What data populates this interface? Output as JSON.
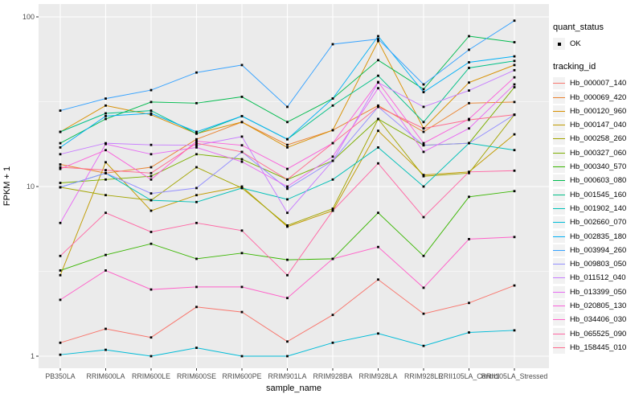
{
  "chart_data": {
    "type": "line",
    "title": "",
    "xlabel": "sample_name",
    "ylabel": "FPKM + 1",
    "y_scale": "log10",
    "ylim": [
      0.95,
      110
    ],
    "grid": "on",
    "legend_position": "right",
    "panel_bg": "#EBEBEB",
    "gridline_color": "#FFFFFF",
    "point_color": "#000000",
    "axis_text_color": "#4D4D4D",
    "y_ticks": [
      1,
      10,
      100
    ],
    "y_tick_labels": [
      "1",
      "10",
      "100"
    ],
    "y_minor_ticks": [
      3.1623,
      31.623
    ],
    "categories": [
      "PB350LA",
      "RRIM600LA",
      "RRIM600LE",
      "RRIM600SE",
      "RRIM600PE",
      "RRIM901LA",
      "RRIM928BA",
      "RRIM928LA",
      "RRIM928LE",
      "RRII105LA_Control",
      "RRII105LA_Stressed"
    ],
    "series": [
      {
        "name": "Hb_000007_140",
        "color": "#F8766D",
        "values": [
          1.2,
          1.45,
          1.29,
          1.95,
          1.82,
          1.22,
          1.75,
          2.83,
          1.78,
          2.06,
          2.61
        ]
      },
      {
        "name": "Hb_000069_420",
        "color": "#EA8331",
        "values": [
          13.5,
          12.0,
          13.0,
          19.0,
          24.0,
          17.6,
          21.5,
          30.0,
          21.0,
          31.0,
          31.5
        ]
      },
      {
        "name": "Hb_000120_960",
        "color": "#D89000",
        "values": [
          21.0,
          30.0,
          26.5,
          20.5,
          24.0,
          17.0,
          21.5,
          72.0,
          22.0,
          41.0,
          52.0
        ]
      },
      {
        "name": "Hb_000147_040",
        "color": "#C09B00",
        "values": [
          3.0,
          13.9,
          7.2,
          8.9,
          10.0,
          5.8,
          7.2,
          21.3,
          11.7,
          12.2,
          20.3
        ]
      },
      {
        "name": "Hb_000258_260",
        "color": "#A3A500",
        "values": [
          9.9,
          8.9,
          8.3,
          13.0,
          9.8,
          5.9,
          7.4,
          25.0,
          11.5,
          12.0,
          26.5
        ]
      },
      {
        "name": "Hb_000327_060",
        "color": "#7CAE00",
        "values": [
          10.5,
          11.0,
          11.5,
          15.5,
          14.5,
          11.0,
          14.2,
          25.0,
          17.5,
          18.0,
          38.5
        ]
      },
      {
        "name": "Hb_000340_570",
        "color": "#39B600",
        "values": [
          3.2,
          3.95,
          4.6,
          3.75,
          4.05,
          3.7,
          3.75,
          7.0,
          3.9,
          8.7,
          9.4
        ]
      },
      {
        "name": "Hb_000603_080",
        "color": "#00BB4E",
        "values": [
          18.0,
          25.0,
          31.5,
          31.0,
          33.8,
          24.0,
          33.0,
          55.6,
          37.5,
          77.0,
          70.9
        ]
      },
      {
        "name": "Hb_001545_160",
        "color": "#00C087",
        "values": [
          21.0,
          27.0,
          28.0,
          20.5,
          26.0,
          19.0,
          30.0,
          45.0,
          24.0,
          50.0,
          55.0
        ]
      },
      {
        "name": "Hb_001902_140",
        "color": "#00C0B8",
        "values": [
          9.9,
          12.0,
          8.3,
          8.1,
          9.8,
          8.4,
          11.0,
          17.0,
          10.0,
          18.0,
          16.4
        ]
      },
      {
        "name": "Hb_002660_070",
        "color": "#00BCD8",
        "values": [
          1.02,
          1.09,
          1.0,
          1.12,
          1.0,
          1.0,
          1.2,
          1.36,
          1.15,
          1.38,
          1.42
        ]
      },
      {
        "name": "Hb_002835_180",
        "color": "#00B0F6",
        "values": [
          17.0,
          26.0,
          27.0,
          21.0,
          26.0,
          19.0,
          33.0,
          77.0,
          36.0,
          54.0,
          58.5
        ]
      },
      {
        "name": "Hb_003994_260",
        "color": "#35A2FF",
        "values": [
          28.0,
          33.0,
          37.0,
          47.0,
          52.0,
          29.5,
          69.0,
          74.0,
          40.0,
          64.0,
          95.0
        ]
      },
      {
        "name": "Hb_009803_050",
        "color": "#9590FF",
        "values": [
          9.9,
          12.0,
          9.1,
          9.8,
          16.0,
          9.7,
          14.2,
          29.5,
          17.5,
          18.0,
          26.5
        ]
      },
      {
        "name": "Hb_011512_040",
        "color": "#C77CFF",
        "values": [
          15.5,
          18.0,
          17.6,
          17.5,
          19.7,
          7.0,
          14.2,
          41.0,
          29.5,
          36.8,
          48.5
        ]
      },
      {
        "name": "Hb_013399_050",
        "color": "#E76BF3",
        "values": [
          6.1,
          17.8,
          15.5,
          17.0,
          14.0,
          10.0,
          15.0,
          38.0,
          16.0,
          22.0,
          40.0
        ]
      },
      {
        "name": "Hb_020805_130",
        "color": "#FA62DB",
        "values": [
          12.7,
          16.4,
          11.0,
          18.5,
          17.5,
          12.7,
          18.0,
          41.3,
          18.0,
          25.0,
          44.0
        ]
      },
      {
        "name": "Hb_034406_030",
        "color": "#FF61C9",
        "values": [
          2.15,
          3.2,
          2.47,
          2.56,
          2.56,
          2.2,
          3.75,
          4.4,
          2.53,
          4.9,
          5.04
        ]
      },
      {
        "name": "Hb_065525_090",
        "color": "#FF67A4",
        "values": [
          3.9,
          7.0,
          5.4,
          6.1,
          5.5,
          3.0,
          7.2,
          13.7,
          6.6,
          12.2,
          12.4
        ]
      },
      {
        "name": "Hb_158445_010",
        "color": "#FF6B8D",
        "values": [
          13.0,
          12.5,
          12.0,
          18.0,
          16.0,
          11.0,
          18.0,
          29.5,
          22.0,
          24.7,
          26.5
        ]
      }
    ]
  },
  "legend": {
    "quant_status_title": "quant_status",
    "quant_status_ok": "OK",
    "tracking_id_title": "tracking_id"
  },
  "axes": {
    "x_title": "sample_name",
    "y_title": "FPKM + 1"
  }
}
